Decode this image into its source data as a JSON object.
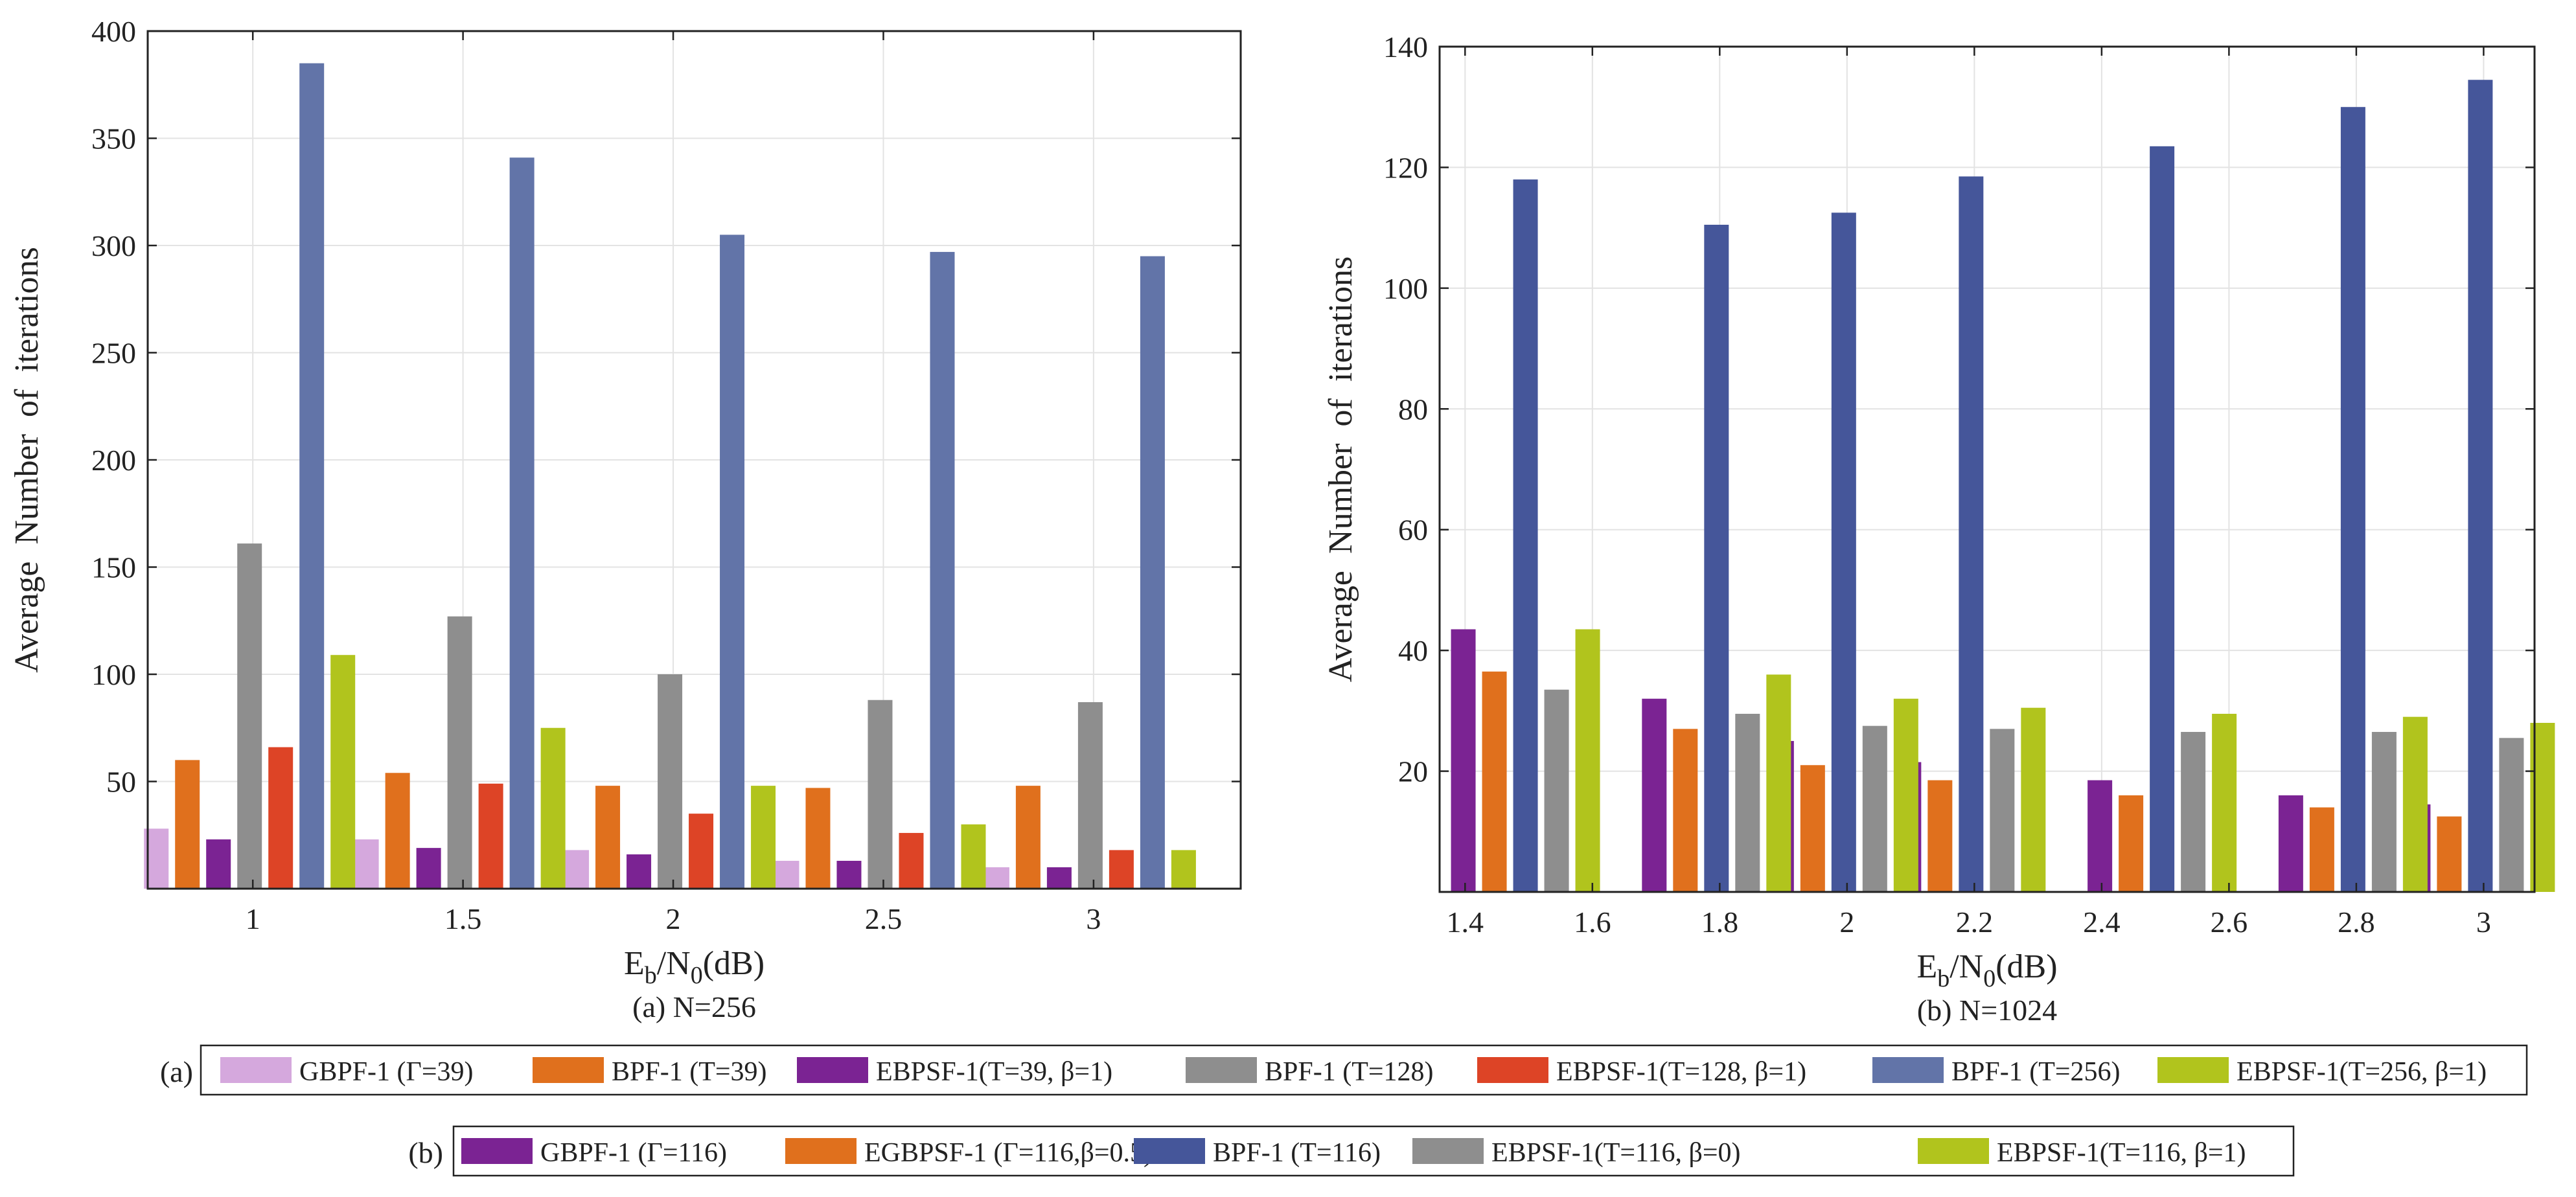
{
  "chart_data": [
    {
      "type": "bar",
      "title": "",
      "caption": "(a) N=256",
      "xlabel": {
        "base": "E",
        "sub1": "b",
        "mid": "/N",
        "sub2": "0",
        "tail": "(dB)"
      },
      "ylabel": "Average  Number  of  iterations",
      "categories": [
        "1",
        "1.5",
        "2",
        "2.5",
        "3"
      ],
      "yticks": [
        "50",
        "100",
        "150",
        "200",
        "250",
        "300",
        "350",
        "400"
      ],
      "ylim": [
        0,
        400
      ],
      "grid": true,
      "series": [
        {
          "name": "GBPF-1 (Γ=39)",
          "color": "#d5a8dd",
          "values": [
            28,
            23,
            18,
            13,
            10
          ]
        },
        {
          "name": "BPF-1 (T=39)",
          "color": "#e0701d",
          "values": [
            60,
            54,
            48,
            47,
            48
          ]
        },
        {
          "name": "EBPSF-1(T=39, β=1)",
          "color": "#7b2393",
          "values": [
            23,
            19,
            16,
            13,
            10
          ]
        },
        {
          "name": "BPF-1 (T=128)",
          "color": "#8e8e8e",
          "values": [
            161,
            127,
            100,
            88,
            87
          ]
        },
        {
          "name": "EBPSF-1(T=128, β=1)",
          "color": "#dd4426",
          "values": [
            66,
            49,
            35,
            26,
            18
          ]
        },
        {
          "name": "BPF-1 (T=256)",
          "color": "#6274a8",
          "values": [
            385,
            341,
            305,
            297,
            295
          ]
        },
        {
          "name": "EBPSF-1(T=256, β=1)",
          "color": "#b1c41d",
          "values": [
            109,
            75,
            48,
            30,
            18
          ]
        }
      ]
    },
    {
      "type": "bar",
      "title": "",
      "caption": "(b) N=1024",
      "xlabel": {
        "base": "E",
        "sub1": "b",
        "mid": "/N",
        "sub2": "0",
        "tail": "(dB)"
      },
      "ylabel": "Average  Number  of  iterations",
      "categories": [
        "1.5",
        "1.8",
        "2",
        "2.2",
        "2.5",
        "2.8",
        "3"
      ],
      "xticks": [
        "1.4",
        "1.6",
        "1.8",
        "2",
        "2.2",
        "2.4",
        "2.6",
        "2.8",
        "3"
      ],
      "yticks": [
        "20",
        "40",
        "60",
        "80",
        "100",
        "120",
        "140"
      ],
      "ylim": [
        0,
        140
      ],
      "grid": true,
      "series": [
        {
          "name": "GBPF-1 (Γ=116)",
          "color": "#7b2393",
          "values": [
            43.5,
            32,
            25,
            21.5,
            18.5,
            16,
            14.5
          ]
        },
        {
          "name": "EGBPSF-1 (Γ=116,β=0.5)",
          "color": "#e0701d",
          "values": [
            36.5,
            27,
            21,
            18.5,
            16,
            14,
            12.5
          ]
        },
        {
          "name": "BPF-1 (T=116)",
          "color": "#45569a",
          "values": [
            118,
            110.5,
            112.5,
            118.5,
            123.5,
            130,
            134.5
          ]
        },
        {
          "name": "EBPSF-1(T=116, β=0)",
          "color": "#8e8e8e",
          "values": [
            33.5,
            29.5,
            27.5,
            27,
            26.5,
            26.5,
            25.5
          ]
        },
        {
          "name": "EBPSF-1(T=116, β=1)",
          "color": "#b1c41d",
          "values": [
            43.5,
            36,
            32,
            30.5,
            29.5,
            29,
            28
          ]
        }
      ]
    }
  ],
  "legend_a_tag": "(a)",
  "legend_b_tag": "(b)"
}
